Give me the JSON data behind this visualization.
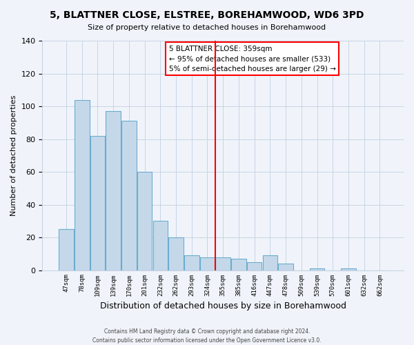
{
  "title": "5, BLATTNER CLOSE, ELSTREE, BOREHAMWOOD, WD6 3PD",
  "subtitle": "Size of property relative to detached houses in Borehamwood",
  "xlabel": "Distribution of detached houses by size in Borehamwood",
  "ylabel": "Number of detached properties",
  "bar_labels": [
    "47sqm",
    "78sqm",
    "109sqm",
    "139sqm",
    "170sqm",
    "201sqm",
    "232sqm",
    "262sqm",
    "293sqm",
    "324sqm",
    "355sqm",
    "385sqm",
    "416sqm",
    "447sqm",
    "478sqm",
    "509sqm",
    "539sqm",
    "570sqm",
    "601sqm",
    "632sqm",
    "662sqm"
  ],
  "bar_values": [
    25,
    104,
    82,
    97,
    91,
    60,
    30,
    20,
    9,
    8,
    8,
    7,
    5,
    9,
    4,
    0,
    1,
    0,
    1,
    0,
    0
  ],
  "bar_color": "#c5d8ea",
  "bar_edge_color": "#6aacce",
  "vline_index": 10,
  "vline_color": "red",
  "annotation_title": "5 BLATTNER CLOSE: 359sqm",
  "annotation_line1": "← 95% of detached houses are smaller (533)",
  "annotation_line2": "5% of semi-detached houses are larger (29) →",
  "ylim": [
    0,
    140
  ],
  "yticks": [
    0,
    20,
    40,
    60,
    80,
    100,
    120,
    140
  ],
  "footer_line1": "Contains HM Land Registry data © Crown copyright and database right 2024.",
  "footer_line2": "Contains public sector information licensed under the Open Government Licence v3.0.",
  "bg_color": "#f0f4fa",
  "grid_color": "#c8d4e4"
}
